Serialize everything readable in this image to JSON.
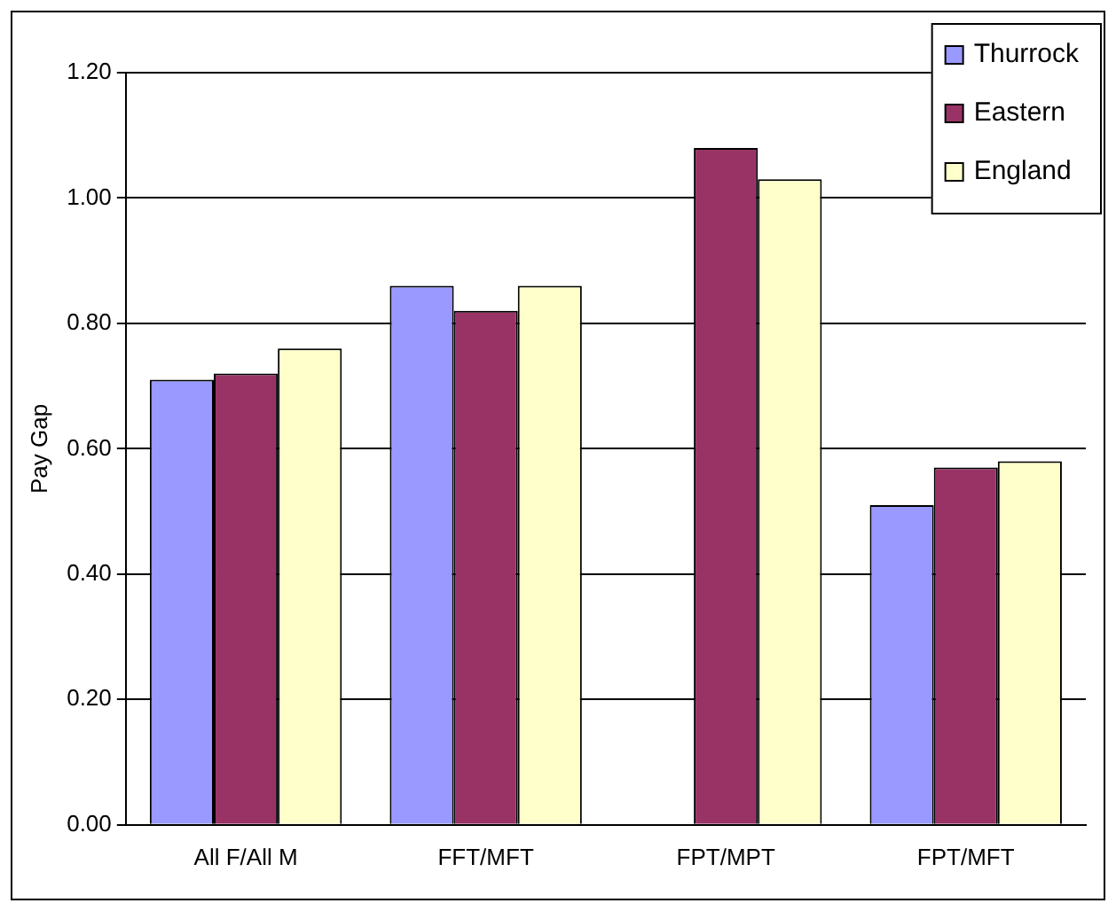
{
  "chart_data": {
    "type": "bar",
    "ylabel": "Pay Gap",
    "categories": [
      "All F/All M",
      "FFT/MFT",
      "FPT/MPT",
      "FPT/MFT"
    ],
    "series": [
      {
        "name": "Thurrock",
        "color": "#9999ff",
        "values": [
          0.71,
          0.86,
          null,
          0.51
        ]
      },
      {
        "name": "Eastern",
        "color": "#993366",
        "values": [
          0.72,
          0.82,
          1.08,
          0.57
        ]
      },
      {
        "name": "England",
        "color": "#ffffcc",
        "values": [
          0.76,
          0.86,
          1.03,
          0.58
        ]
      }
    ],
    "ylim": [
      0,
      1.2
    ],
    "yticks": [
      {
        "value": 0,
        "label": "0.00"
      },
      {
        "value": 0.2,
        "label": "0.20"
      },
      {
        "value": 0.4,
        "label": "0.40"
      },
      {
        "value": 0.6,
        "label": "0.60"
      },
      {
        "value": 0.8,
        "label": "0.80"
      },
      {
        "value": 1,
        "label": "1.00"
      },
      {
        "value": 1.2,
        "label": "1.20"
      }
    ],
    "grid": "y",
    "legend": "top right"
  }
}
